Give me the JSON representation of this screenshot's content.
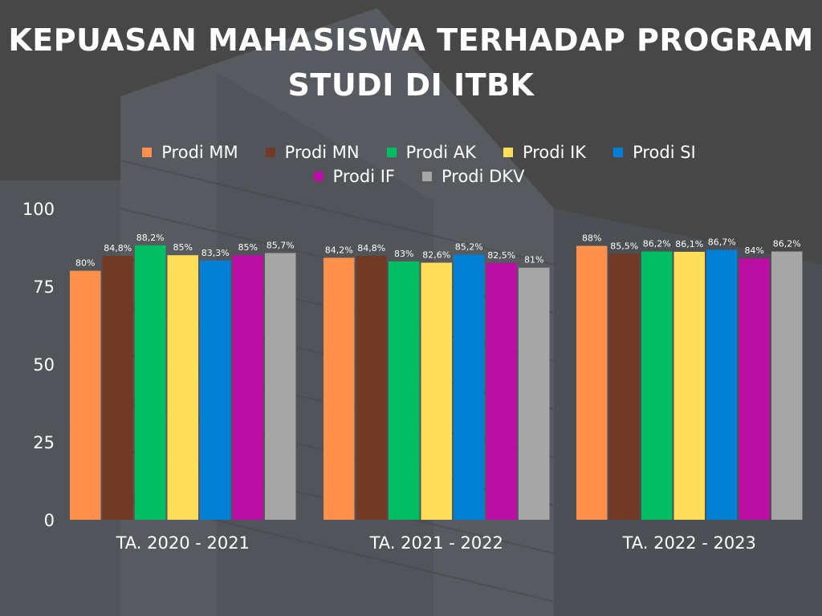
{
  "title": "KEPUASAN MAHASISWA TERHADAP PROGRAM STUDI DI ITBK",
  "chart_data": {
    "type": "bar",
    "title": "KEPUASAN MAHASISWA TERHADAP PROGRAM STUDI DI ITBK",
    "categories": [
      "TA. 2020 - 2021",
      "TA. 2021 - 2022",
      "TA. 2022 - 2023"
    ],
    "series": [
      {
        "name": "Prodi MM",
        "color": "#ff914d",
        "values": [
          80,
          84.2,
          88
        ],
        "labels": [
          "80%",
          "84,2%",
          "88%"
        ]
      },
      {
        "name": "Prodi MN",
        "color": "#703a26",
        "values": [
          84.8,
          84.8,
          85.5
        ],
        "labels": [
          "84,8%",
          "84,8%",
          "85,5%"
        ]
      },
      {
        "name": "Prodi AK",
        "color": "#00bf63",
        "values": [
          88.2,
          83,
          86.2
        ],
        "labels": [
          "88,2%",
          "83%",
          "86,2%"
        ]
      },
      {
        "name": "Prodi IK",
        "color": "#ffde59",
        "values": [
          85,
          82.6,
          86.1
        ],
        "labels": [
          "85%",
          "82,6%",
          "86,1%"
        ]
      },
      {
        "name": "Prodi SI",
        "color": "#0080d4",
        "values": [
          83.3,
          85.2,
          86.7
        ],
        "labels": [
          "83,3%",
          "85,2%",
          "86,7%"
        ]
      },
      {
        "name": "Prodi IF",
        "color": "#bb0fa4",
        "values": [
          85,
          82.5,
          84
        ],
        "labels": [
          "85%",
          "82,5%",
          "84%"
        ]
      },
      {
        "name": "Prodi DKV",
        "color": "#a6a6a6",
        "values": [
          85.7,
          81,
          86.2
        ],
        "labels": [
          "85,7%",
          "81%",
          "86,2%"
        ]
      }
    ],
    "yticks": [
      "0",
      "25",
      "50",
      "75",
      "100"
    ],
    "ylim": [
      0,
      100
    ],
    "grid": false,
    "legend_position": "top-center",
    "xlabel": "",
    "ylabel": ""
  }
}
